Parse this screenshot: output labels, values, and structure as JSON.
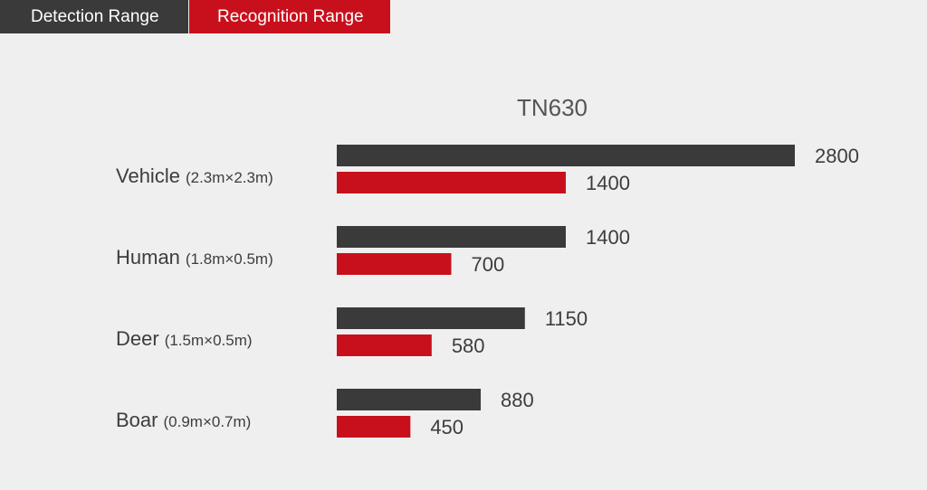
{
  "tabs": [
    {
      "label": "Detection Range",
      "color": "#3a3a3a",
      "active": false
    },
    {
      "label": "Recognition Range",
      "color": "#c8101c",
      "active": true
    }
  ],
  "colors": {
    "detection": "#3a3a3a",
    "recognition": "#c8101c",
    "background": "#efefef"
  },
  "chart_data": {
    "type": "bar",
    "orientation": "horizontal",
    "title": "TN630",
    "xlabel": "",
    "ylabel": "",
    "xlim": [
      0,
      2800
    ],
    "grid": false,
    "categories": [
      {
        "name": "Vehicle",
        "dims": "(2.3m×2.3m)"
      },
      {
        "name": "Human",
        "dims": "(1.8m×0.5m)"
      },
      {
        "name": "Deer",
        "dims": "(1.5m×0.5m)"
      },
      {
        "name": "Boar",
        "dims": "(0.9m×0.7m)"
      }
    ],
    "series": [
      {
        "key": "detection",
        "values": [
          2800,
          1400,
          1150,
          880
        ],
        "labels": [
          "2800",
          "1400",
          "1150",
          "880"
        ]
      },
      {
        "key": "recognition",
        "values": [
          1400,
          700,
          580,
          450
        ],
        "labels": [
          "1400",
          "700",
          "580",
          "450"
        ]
      }
    ]
  }
}
